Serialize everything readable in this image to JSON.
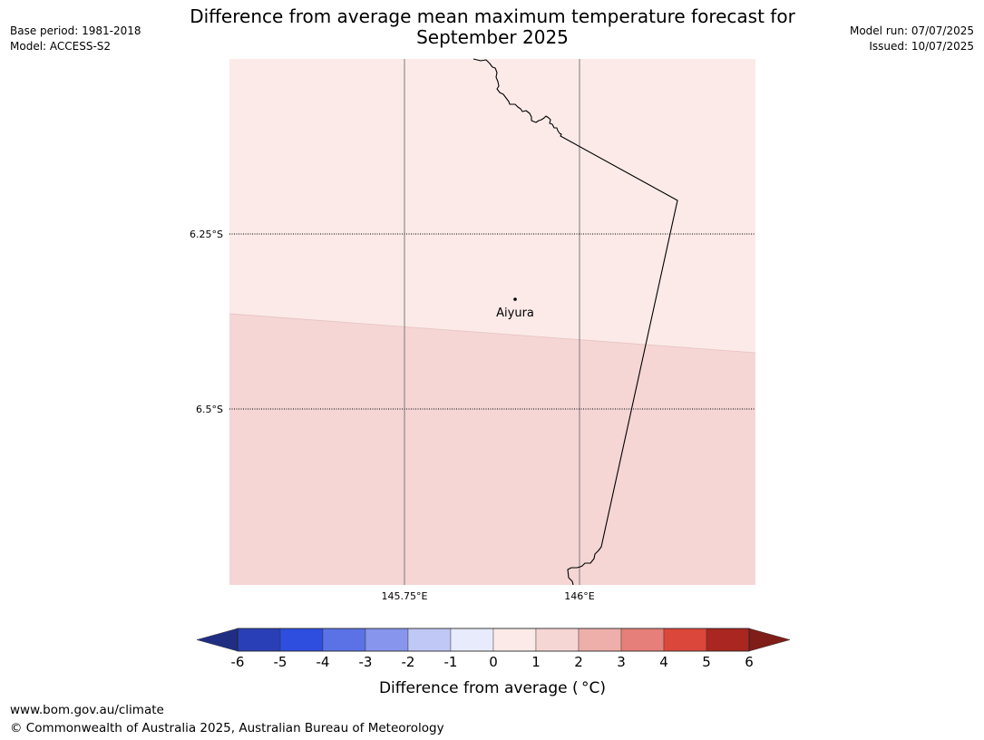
{
  "header": {
    "title_line1": "Difference from average mean maximum temperature forecast for",
    "title_line2": "September 2025",
    "base_period": "Base period: 1981-2018",
    "model": "Model: ACCESS-S2",
    "model_run": "Model run: 07/07/2025",
    "issued": "Issued: 10/07/2025"
  },
  "map": {
    "latitude_labels": [
      "6.25°S",
      "6.5°S"
    ],
    "longitude_labels": [
      "145.75°E",
      "146°E"
    ],
    "place": {
      "name": "Aiyura"
    },
    "anomaly_colors": {
      "0_to_1": "#fbeae8",
      "1_to_2": "#f5d6d5"
    }
  },
  "legend": {
    "tick_labels": [
      "-6",
      "-5",
      "-4",
      "-3",
      "-2",
      "-1",
      "0",
      "1",
      "2",
      "3",
      "4",
      "5",
      "6"
    ],
    "colors": [
      "#1f2e83",
      "#293fb7",
      "#2e4ee0",
      "#5a72e5",
      "#8795ec",
      "#c0c8f5",
      "#e8ebfc",
      "#fbeae8",
      "#f5d6d5",
      "#eeaeaa",
      "#e67f79",
      "#dc473b",
      "#aa2620",
      "#7f1d19"
    ],
    "label": "Difference from average ( °C)"
  },
  "footer": {
    "url": "www.bom.gov.au/climate",
    "copyright": "© Commonwealth of Australia 2025, Australian Bureau of Meteorology"
  }
}
